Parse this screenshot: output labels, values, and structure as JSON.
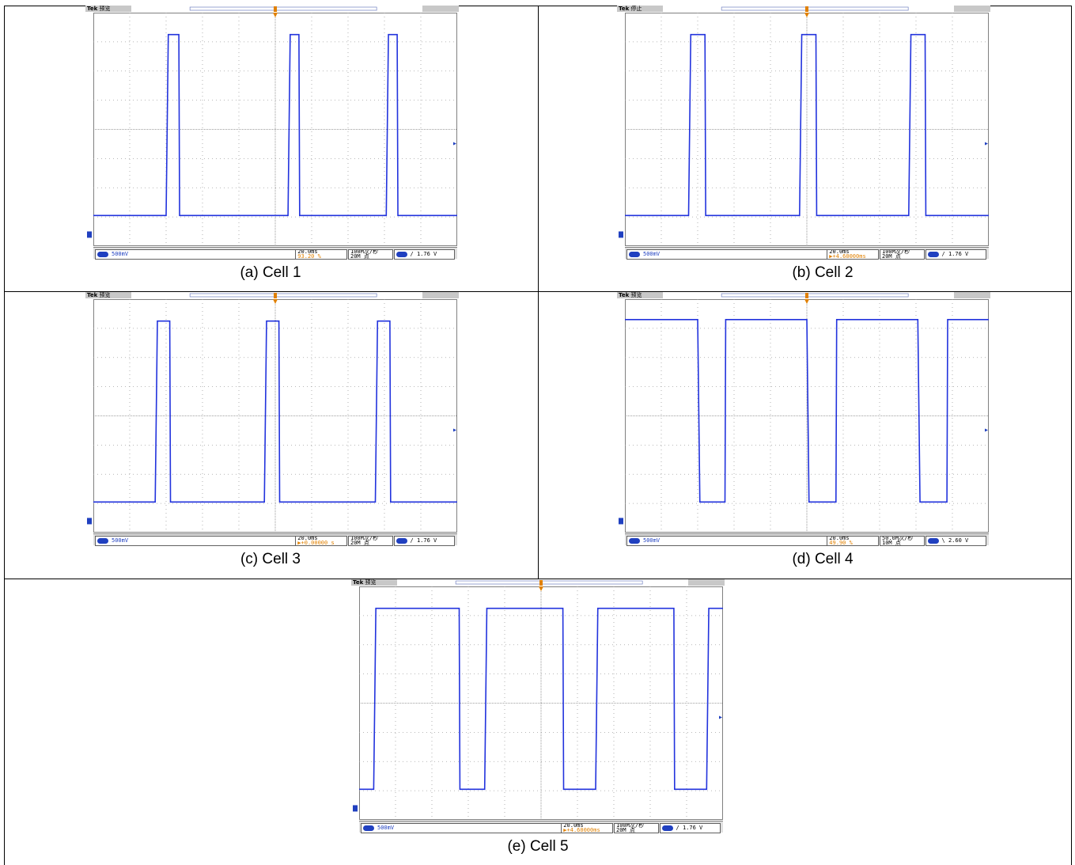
{
  "chart_data": [
    {
      "type": "line",
      "caption": "(a) Cell 1",
      "header": {
        "brand": "Tek",
        "mode": "预览"
      },
      "ylim": [
        0,
        8
      ],
      "xlim": [
        0,
        10
      ],
      "high_level": 7.25,
      "low_level": 1.05,
      "pulses": [
        [
          2.0,
          2.35
        ],
        [
          5.35,
          5.65
        ],
        [
          8.05,
          8.35
        ]
      ],
      "start_level": "low",
      "footer": {
        "ch_scale": "500mV",
        "timebase": "20.0ms",
        "trigger_pos": "93.20 %",
        "sample_rate": "100M次/秒",
        "record_length": "20M 点",
        "trigger_slope": "/",
        "trigger_level": "1.76 V"
      }
    },
    {
      "type": "line",
      "caption": "(b) Cell 2",
      "header": {
        "brand": "Tek",
        "mode": "停止"
      },
      "ylim": [
        0,
        8
      ],
      "xlim": [
        0,
        10
      ],
      "high_level": 7.25,
      "low_level": 1.05,
      "pulses": [
        [
          1.75,
          2.2
        ],
        [
          4.8,
          5.25
        ],
        [
          7.8,
          8.25
        ]
      ],
      "start_level": "low",
      "footer": {
        "ch_scale": "500mV",
        "timebase": "20.0ms",
        "trigger_pos": "▶+4.60000ms",
        "sample_rate": "100M次/秒",
        "record_length": "20M 点",
        "trigger_slope": "/",
        "trigger_level": "1.76 V"
      }
    },
    {
      "type": "line",
      "caption": "(c) Cell 3",
      "header": {
        "brand": "Tek",
        "mode": "预览"
      },
      "ylim": [
        0,
        8
      ],
      "xlim": [
        0,
        10
      ],
      "high_level": 7.25,
      "low_level": 1.05,
      "pulses": [
        [
          1.7,
          2.1
        ],
        [
          4.7,
          5.1
        ],
        [
          7.75,
          8.15
        ]
      ],
      "start_level": "low",
      "footer": {
        "ch_scale": "500mV",
        "timebase": "20.0ms",
        "trigger_pos": "▶+0.00000 s",
        "sample_rate": "100M次/秒",
        "record_length": "20M 点",
        "trigger_slope": "/",
        "trigger_level": "1.76 V"
      }
    },
    {
      "type": "line",
      "caption": "(d) Cell 4",
      "header": {
        "brand": "Tek",
        "mode": "预览"
      },
      "ylim": [
        0,
        8
      ],
      "xlim": [
        0,
        10
      ],
      "high_level": 7.3,
      "low_level": 1.05,
      "pulses": [
        [
          2.0,
          2.75
        ],
        [
          5.0,
          5.8
        ],
        [
          8.05,
          8.85
        ]
      ],
      "start_level": "high",
      "footer": {
        "ch_scale": "500mV",
        "timebase": "20.0ms",
        "trigger_pos": "49.90 %",
        "sample_rate": "50.0M次/秒",
        "record_length": "10M 点",
        "trigger_slope": "\\",
        "trigger_level": "2.60 V"
      }
    },
    {
      "type": "line",
      "caption": "(e) Cell 5",
      "header": {
        "brand": "Tek",
        "mode": "预览"
      },
      "ylim": [
        0,
        8
      ],
      "xlim": [
        0,
        10
      ],
      "high_level": 7.25,
      "low_level": 1.05,
      "pulses": [
        [
          0.4,
          2.75
        ],
        [
          3.45,
          5.6
        ],
        [
          6.5,
          8.65
        ],
        [
          9.55,
          10.0
        ]
      ],
      "start_level": "low",
      "footer": {
        "ch_scale": "500mV",
        "timebase": "20.0ms",
        "trigger_pos": "▶+4.60000ms",
        "sample_rate": "100M次/秒",
        "record_length": "20M 点",
        "trigger_slope": "/",
        "trigger_level": "1.76 V"
      }
    }
  ],
  "colors": {
    "trace": "#2233dd",
    "trigger_marker": "#e08000",
    "grid_dot": "#a0a0a0"
  }
}
